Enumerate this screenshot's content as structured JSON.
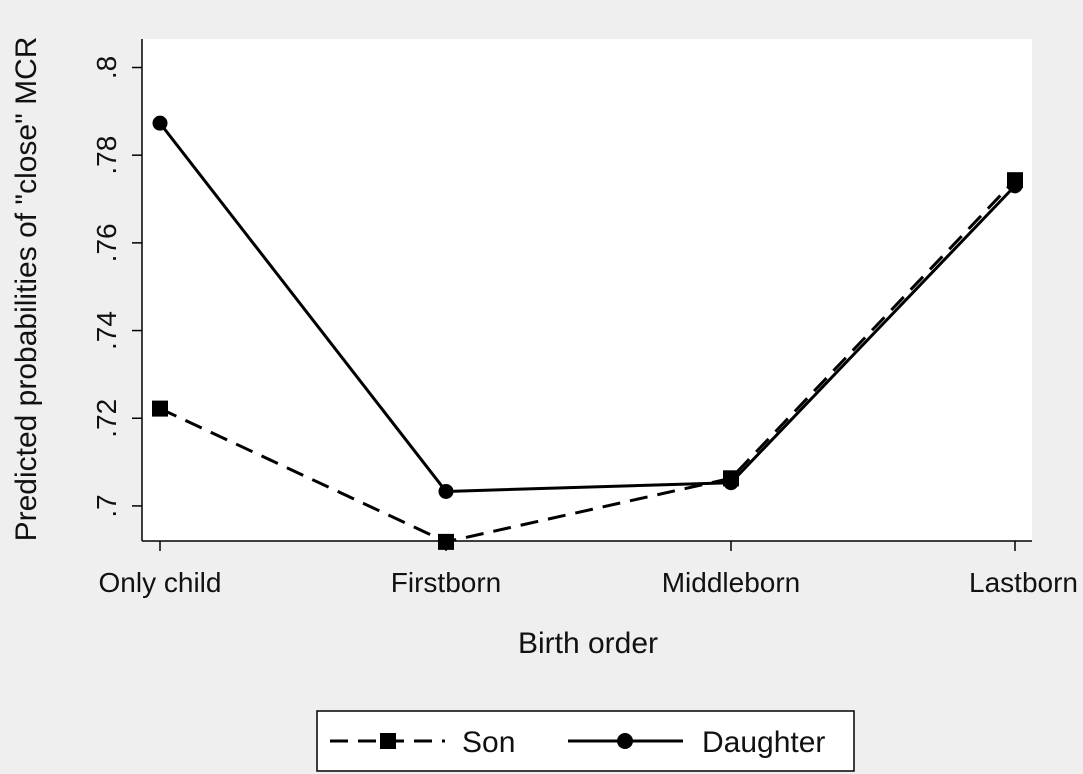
{
  "chart_data": {
    "type": "line",
    "xlabel": "Birth order",
    "ylabel": "Predicted probabilities of \"close\" MCR",
    "categories": [
      "Only child",
      "Firstborn",
      "Middleborn",
      "Lastborn"
    ],
    "ylim": [
      0.692,
      0.8065
    ],
    "yticks": [
      0.7,
      0.72,
      0.74,
      0.76,
      0.78,
      0.8
    ],
    "ytick_labels": [
      ".7",
      ".72",
      ".74",
      ".76",
      ".78",
      ".8"
    ],
    "grid": false,
    "legend_position": "bottom",
    "series": [
      {
        "name": "Son",
        "values": [
          0.7222,
          0.6918,
          0.7063,
          0.7743
        ],
        "line_style": "dashed",
        "marker": "square",
        "color": "#000000"
      },
      {
        "name": "Daughter",
        "values": [
          0.7873,
          0.7033,
          0.7053,
          0.773
        ],
        "line_style": "solid",
        "marker": "circle",
        "color": "#000000"
      }
    ]
  },
  "colors": {
    "background": "#efefef",
    "plot_background": "#ffffff",
    "ink": "#000000"
  }
}
